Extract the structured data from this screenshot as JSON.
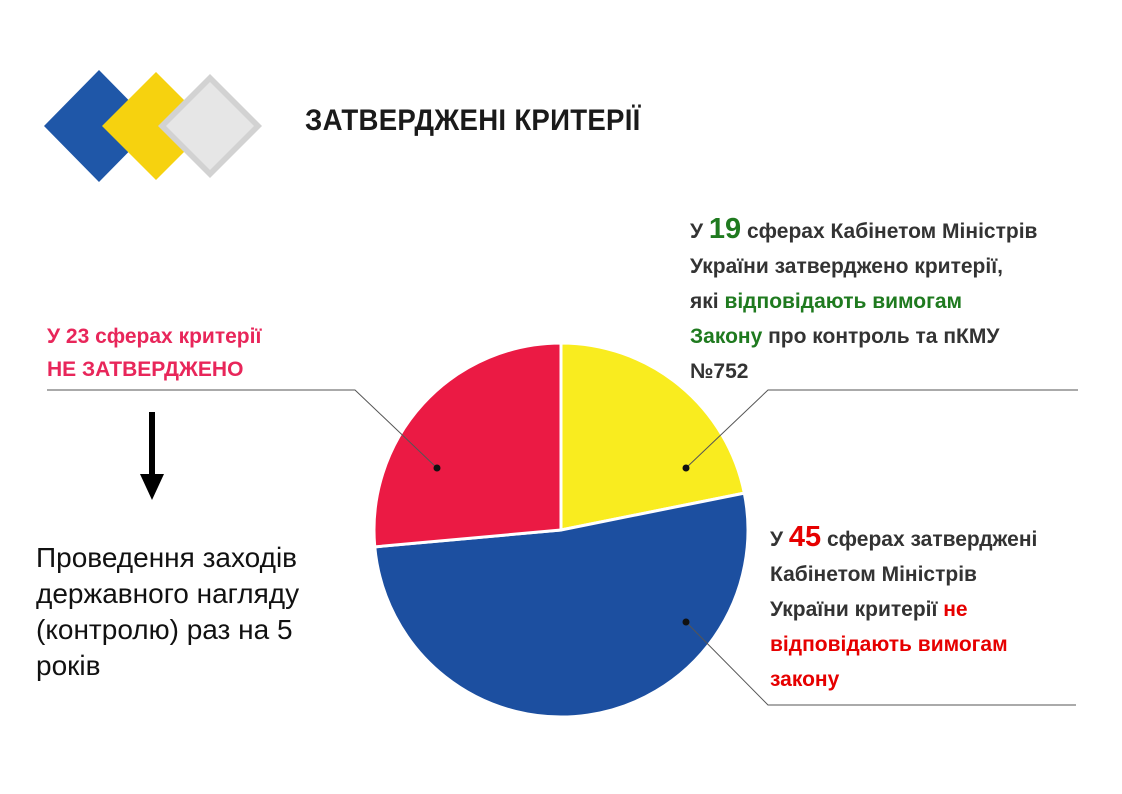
{
  "page": {
    "title": "ЗАТВЕРДЖЕНІ КРИТЕРІЇ",
    "logo": {
      "name": "three-diamonds-logo",
      "colors": [
        "#1f57a8",
        "#f6d20f",
        "#d2d2d2"
      ]
    }
  },
  "chart_data": {
    "type": "pie",
    "title": "",
    "start_angle": "12 o'clock, clockwise",
    "slices": [
      {
        "value": 19,
        "color": "#f9ec1f"
      },
      {
        "value": 45,
        "color": "#1c4fa0"
      },
      {
        "value": 23,
        "color": "#eb1a44"
      }
    ]
  },
  "callouts": {
    "yellow": {
      "l1_pre": "У ",
      "l1_num": "19",
      "l1_post": " сферах Кабінетом Міністрів",
      "l2": "України затверджено  критерії,",
      "l3_pre": "які ",
      "l3_hl": "відповідають  вимогам",
      "l4_hl": "Закону",
      "l4_post": " про  контроль та пКМУ",
      "l5": "№752"
    },
    "blue": {
      "l1_pre": "У ",
      "l1_num": "45",
      "l1_post": " сферах затверджені",
      "l2": "Кабінетом Міністрів",
      "l3_pre": "України критерії ",
      "l3_hl": "не",
      "l4_hl": "відповідають  вимогам",
      "l5_hl": "закону"
    },
    "red": {
      "l1": "У 23 сферах критерії",
      "l2": "НЕ ЗАТВЕРДЖЕНО"
    }
  },
  "note": {
    "l1": "Проведення заходів",
    "l2": "державного нагляду",
    "l3": "(контролю) раз на 5",
    "l4": "років"
  }
}
